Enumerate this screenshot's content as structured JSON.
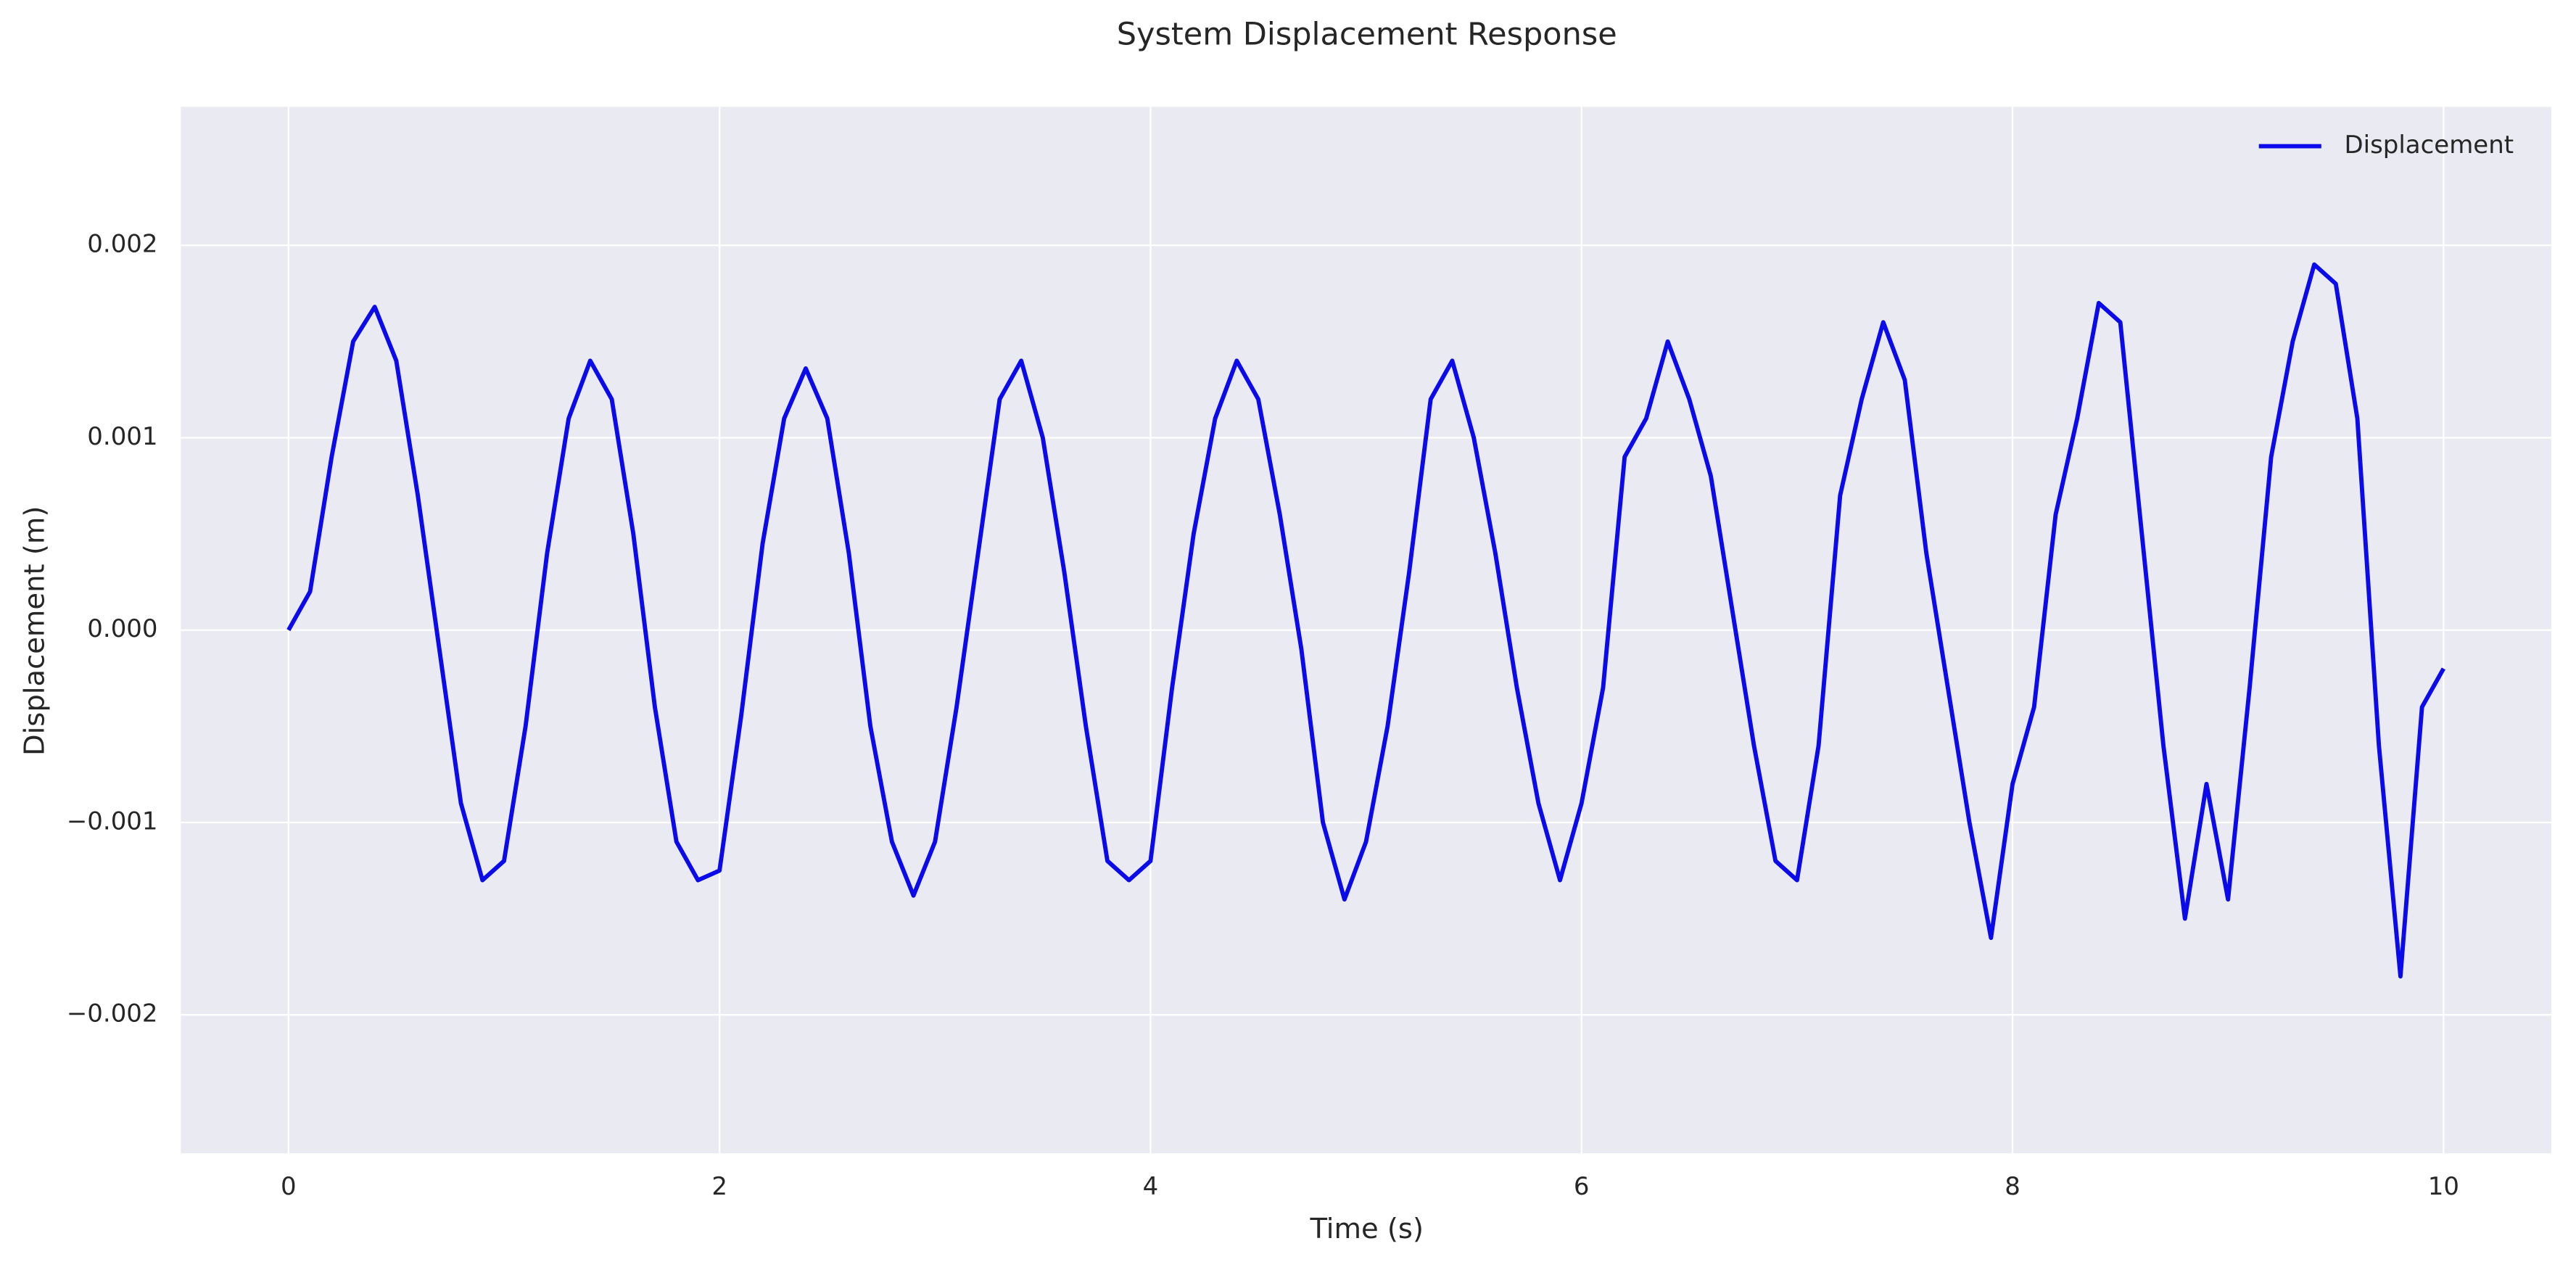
{
  "chart_data": {
    "type": "line",
    "title": "System Displacement Response",
    "xlabel": "Time (s)",
    "ylabel": "Displacement (m)",
    "x": [
      0,
      0.1,
      0.2,
      0.3,
      0.4,
      0.5,
      0.6,
      0.7,
      0.8,
      0.9,
      1,
      1.1,
      1.2,
      1.3,
      1.4,
      1.5,
      1.6,
      1.7,
      1.8,
      1.9,
      2,
      2.1,
      2.2,
      2.3,
      2.4,
      2.5,
      2.6,
      2.7,
      2.8,
      2.9,
      3,
      3.1,
      3.2,
      3.3,
      3.4,
      3.5,
      3.6,
      3.7,
      3.8,
      3.9,
      4,
      4.1,
      4.2,
      4.3,
      4.4,
      4.5,
      4.6,
      4.7,
      4.8,
      4.9,
      5,
      5.1,
      5.2,
      5.3,
      5.4,
      5.5,
      5.6,
      5.7,
      5.8,
      5.9,
      6,
      6.1,
      6.2,
      6.3,
      6.4,
      6.5,
      6.6,
      6.7,
      6.8,
      6.9,
      7,
      7.1,
      7.2,
      7.3,
      7.4,
      7.5,
      7.6,
      7.7,
      7.8,
      7.9,
      8,
      8.1,
      8.2,
      8.3,
      8.4,
      8.5,
      8.6,
      8.7,
      8.8,
      8.9,
      9,
      9.1,
      9.2,
      9.3,
      9.4,
      9.5,
      9.6,
      9.7,
      9.8,
      9.9,
      10
    ],
    "series": [
      {
        "name": "Displacement",
        "color": "#0a0aeb",
        "values": [
          0,
          0.0002,
          0.0009,
          0.0015,
          0.00168,
          0.0014,
          0.0007,
          -0.0001,
          -0.0009,
          -0.0013,
          -0.0012,
          -0.0005,
          0.0004,
          0.0011,
          0.0014,
          0.0012,
          0.0005,
          -0.0004,
          -0.0011,
          -0.0013,
          -0.00125,
          -0.00045,
          0.00045,
          0.0011,
          0.00136,
          0.0011,
          0.0004,
          -0.0005,
          -0.0011,
          -0.00138,
          -0.0011,
          -0.0004,
          0.0004,
          0.0012,
          0.0014,
          0.001,
          0.0003,
          -0.0005,
          -0.0012,
          -0.0013,
          -0.0012,
          -0.0003,
          0.0005,
          0.0011,
          0.0014,
          0.0012,
          0.0006,
          -0.0001,
          -0.001,
          -0.0014,
          -0.0011,
          -0.0005,
          0.0003,
          0.0012,
          0.0014,
          0.001,
          0.0004,
          -0.0003,
          -0.0009,
          -0.0013,
          -0.0009,
          -0.0003,
          0.0009,
          0.0011,
          0.0015,
          0.0012,
          0.0008,
          0.0001,
          -0.0006,
          -0.0012,
          -0.0013,
          -0.0006,
          0.0007,
          0.0012,
          0.0016,
          0.0013,
          0.0004,
          -0.0003,
          -0.001,
          -0.0016,
          -0.0008,
          -0.0004,
          0.0006,
          0.0011,
          0.0017,
          0.0016,
          0.0005,
          -0.0006,
          -0.0015,
          -0.0008,
          -0.0014,
          -0.0003,
          0.0009,
          0.0015,
          0.0019,
          0.0018,
          0.0011,
          -0.0006,
          -0.0018,
          -0.0004,
          -0.0002
        ]
      }
    ],
    "xlim": [
      -0.5,
      10.5
    ],
    "xticks": [
      0,
      2,
      4,
      6,
      8,
      10
    ],
    "ylim": [
      -0.00272,
      0.00272
    ],
    "yticks": [
      {
        "value": -0.002,
        "label": "−0.002"
      },
      {
        "value": -0.001,
        "label": "−0.001"
      },
      {
        "value": 0,
        "label": "0.000"
      },
      {
        "value": 0.001,
        "label": "0.001"
      },
      {
        "value": 0.002,
        "label": "0.002"
      }
    ],
    "grid": true,
    "legend": "upper right"
  }
}
